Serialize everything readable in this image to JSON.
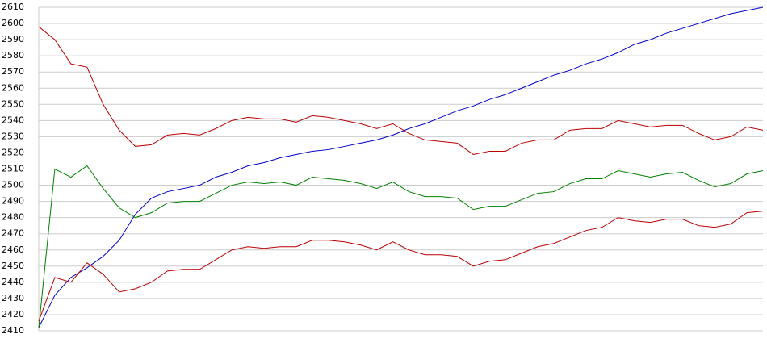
{
  "chart_data": {
    "type": "line",
    "ylim": [
      2410,
      2610
    ],
    "yticks": [
      2410,
      2420,
      2430,
      2440,
      2450,
      2460,
      2470,
      2480,
      2490,
      2500,
      2510,
      2520,
      2530,
      2540,
      2550,
      2560,
      2570,
      2580,
      2590,
      2600,
      2610
    ],
    "grid": true,
    "series": [
      {
        "color": "#0000cc",
        "values": [
          2412,
          2432,
          2443,
          2449,
          2456,
          2466,
          2482,
          2492,
          2496,
          2498,
          2500,
          2505,
          2508,
          2512,
          2514,
          2517,
          2519,
          2521,
          2522,
          2524,
          2526,
          2528,
          2531,
          2535,
          2538,
          2542,
          2546,
          2549,
          2553,
          2556,
          2560,
          2564,
          2568,
          2571,
          2575,
          2578,
          2582,
          2587,
          2590,
          2594,
          2597,
          2600,
          2603,
          2606,
          2608,
          2610
        ]
      },
      {
        "color": "#bb0000",
        "values": [
          2598,
          2590,
          2575,
          2573,
          2550,
          2534,
          2524,
          2525,
          2531,
          2532,
          2531,
          2535,
          2540,
          2542,
          2541,
          2541,
          2539,
          2543,
          2542,
          2540,
          2538,
          2535,
          2538,
          2532,
          2528,
          2527,
          2526,
          2519,
          2521,
          2521,
          2526,
          2528,
          2528,
          2534,
          2535,
          2535,
          2540,
          2538,
          2536,
          2537,
          2537,
          2532,
          2528,
          2530,
          2536,
          2534
        ]
      },
      {
        "color": "#008000",
        "values": [
          2412,
          2510,
          2505,
          2512,
          2498,
          2486,
          2480,
          2483,
          2489,
          2490,
          2490,
          2495,
          2500,
          2502,
          2501,
          2502,
          2500,
          2505,
          2504,
          2503,
          2501,
          2498,
          2502,
          2496,
          2493,
          2493,
          2492,
          2485,
          2487,
          2487,
          2491,
          2495,
          2496,
          2501,
          2504,
          2504,
          2509,
          2507,
          2505,
          2507,
          2508,
          2503,
          2499,
          2501,
          2507,
          2509
        ]
      },
      {
        "color": "#bb0000",
        "values": [
          2416,
          2443,
          2440,
          2452,
          2445,
          2434,
          2436,
          2440,
          2447,
          2448,
          2448,
          2454,
          2460,
          2462,
          2461,
          2462,
          2462,
          2466,
          2466,
          2465,
          2463,
          2460,
          2465,
          2460,
          2457,
          2457,
          2456,
          2450,
          2453,
          2454,
          2458,
          2462,
          2464,
          2468,
          2472,
          2474,
          2480,
          2478,
          2477,
          2479,
          2479,
          2475,
          2474,
          2476,
          2483,
          2484
        ]
      }
    ]
  }
}
